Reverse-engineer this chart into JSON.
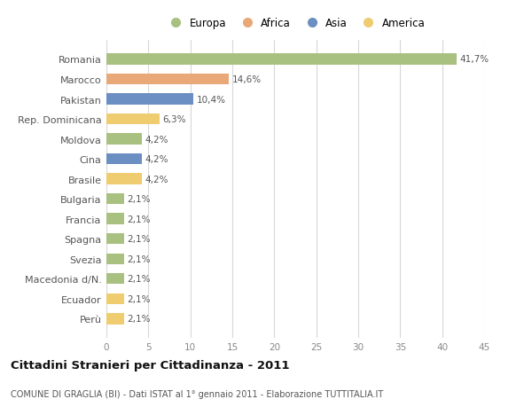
{
  "countries": [
    "Romania",
    "Marocco",
    "Pakistan",
    "Rep. Dominicana",
    "Moldova",
    "Cina",
    "Brasile",
    "Bulgaria",
    "Francia",
    "Spagna",
    "Svezia",
    "Macedonia d/N.",
    "Ecuador",
    "Perù"
  ],
  "values": [
    41.7,
    14.6,
    10.4,
    6.3,
    4.2,
    4.2,
    4.2,
    2.1,
    2.1,
    2.1,
    2.1,
    2.1,
    2.1,
    2.1
  ],
  "labels": [
    "41,7%",
    "14,6%",
    "10,4%",
    "6,3%",
    "4,2%",
    "4,2%",
    "4,2%",
    "2,1%",
    "2,1%",
    "2,1%",
    "2,1%",
    "2,1%",
    "2,1%",
    "2,1%"
  ],
  "continents": [
    "Europa",
    "Africa",
    "Asia",
    "America",
    "Europa",
    "Asia",
    "America",
    "Europa",
    "Europa",
    "Europa",
    "Europa",
    "Europa",
    "America",
    "America"
  ],
  "colors": {
    "Europa": "#a8c080",
    "Africa": "#e8a878",
    "Asia": "#6b8fc2",
    "America": "#f0cc70"
  },
  "legend_order": [
    "Europa",
    "Africa",
    "Asia",
    "America"
  ],
  "title": "Cittadini Stranieri per Cittadinanza - 2011",
  "subtitle": "COMUNE DI GRAGLIA (BI) - Dati ISTAT al 1° gennaio 2011 - Elaborazione TUTTITALIA.IT",
  "xlim": [
    0,
    45
  ],
  "xticks": [
    0,
    5,
    10,
    15,
    20,
    25,
    30,
    35,
    40,
    45
  ],
  "bg_color": "#ffffff",
  "grid_color": "#d8d8d8",
  "bar_height": 0.55
}
